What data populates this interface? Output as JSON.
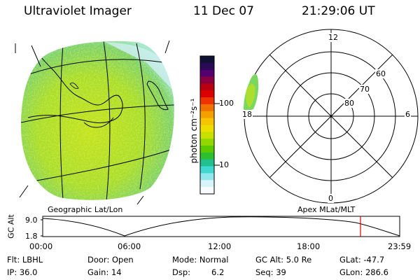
{
  "header": {
    "instrument": "Ultraviolet Imager",
    "date": "11 Dec 07",
    "time": "21:29:06 UT"
  },
  "map_labels": {
    "geographic": "Geographic Lat/Lon",
    "apex": "Apex MLat/MLT"
  },
  "colorbar": {
    "unit_label": "photon cm⁻²s⁻¹",
    "ticks": [
      "100",
      "10"
    ],
    "colors": [
      "#111133",
      "#2a0a55",
      "#550070",
      "#8a0040",
      "#b80010",
      "#dd0000",
      "#ee3300",
      "#f07000",
      "#f4a000",
      "#f6c400",
      "#eedd00",
      "#c8e000",
      "#90d800",
      "#5cc800",
      "#2cc030",
      "#20c090",
      "#40d8d0",
      "#90e8ec",
      "#d8f4f8",
      "#f8fcfc"
    ]
  },
  "polar": {
    "mlt_labels": [
      "12",
      "6",
      "18",
      "0"
    ],
    "mlat_labels": [
      "60",
      "70",
      "80"
    ]
  },
  "orbit_plot": {
    "ylabel": "GC Alt",
    "yticks": [
      "9.0",
      "1.8"
    ],
    "xticks": [
      "00:00",
      "06:00",
      "12:00",
      "18:00",
      "23:59"
    ],
    "current_time_color": "#dd0000"
  },
  "info": {
    "flt": "Flt: LBHL",
    "ip": "IP: 36.0",
    "door": "Door: Open",
    "gain": "Gain: 14",
    "mode": "Mode: Normal",
    "dsp": "Dsp:",
    "dsp_value": "6.2",
    "gc_alt": "GC Alt: 5.0 Re",
    "seq": "Seq: 39",
    "glat": "GLat: -47.7",
    "glon": "GLon: 286.6"
  },
  "image_colors": {
    "base": "#b8e020",
    "pale": "#80e8e0",
    "cyan": "#40d8d0"
  }
}
